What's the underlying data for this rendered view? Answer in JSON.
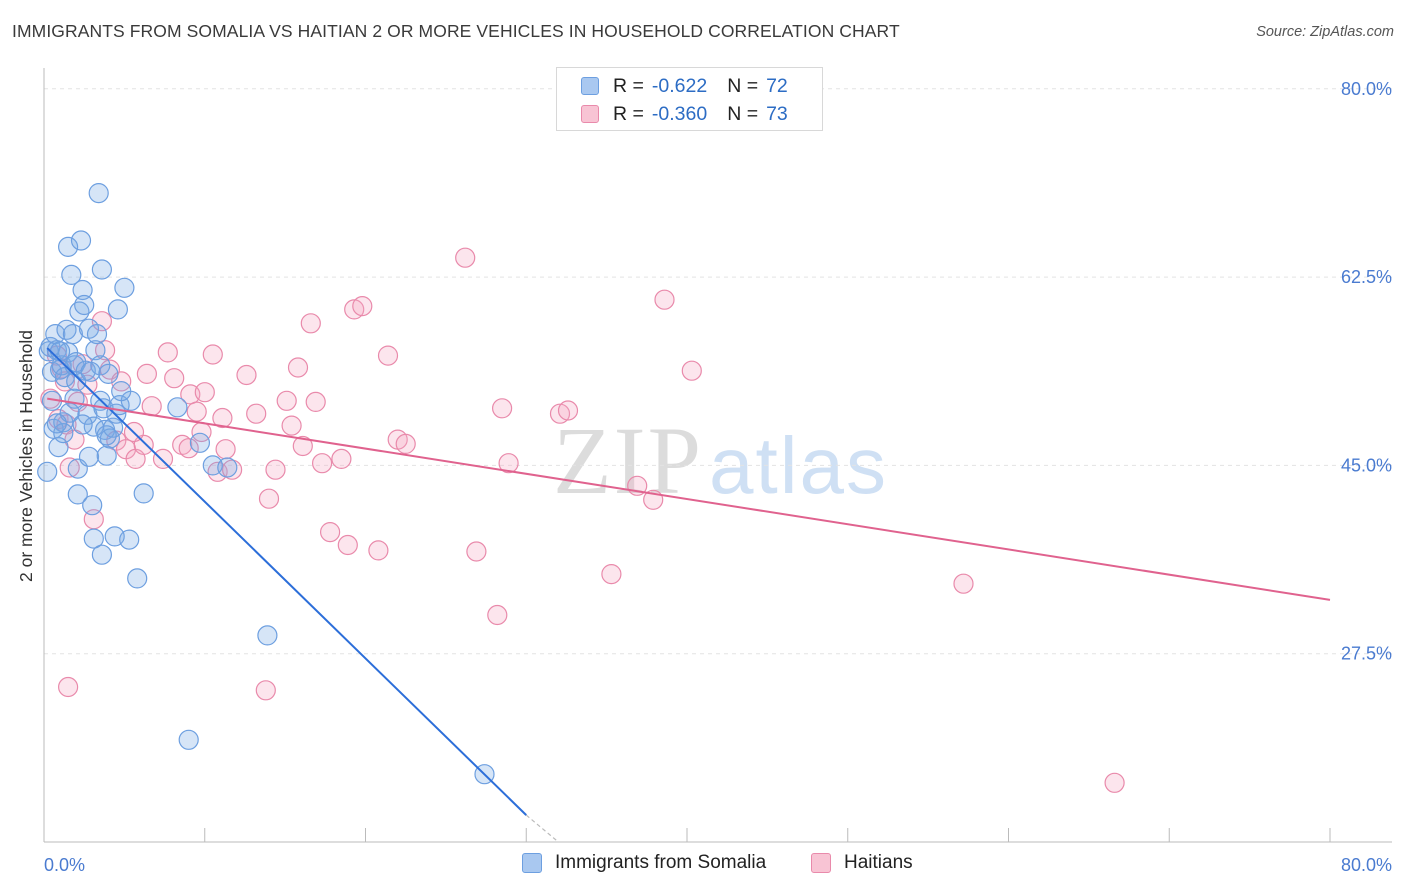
{
  "title": "IMMIGRANTS FROM SOMALIA VS HAITIAN 2 OR MORE VEHICLES IN HOUSEHOLD CORRELATION CHART",
  "source": "Source: ZipAtlas.com",
  "watermark": {
    "left": "ZIP",
    "right": "atlas"
  },
  "legend": {
    "rows": [
      {
        "r_label": "R =",
        "r_value": "-0.622",
        "n_label": "N =",
        "n_value": "72",
        "color": "#a9c8f0",
        "border": "#6d9fe0"
      },
      {
        "r_label": "R =",
        "r_value": "-0.360",
        "n_label": "N =",
        "n_value": "73",
        "color": "#f8c4d4",
        "border": "#e98aab"
      }
    ]
  },
  "bottom_legend": [
    "Immigrants from Somalia",
    "Haitians"
  ],
  "chart_data": {
    "type": "scatter",
    "title": "IMMIGRANTS FROM SOMALIA VS HAITIAN 2 OR MORE VEHICLES IN HOUSEHOLD CORRELATION CHART",
    "xlabel": "",
    "ylabel": "2 or more Vehicles in Household",
    "xlim": [
      0,
      80
    ],
    "ylim": [
      10,
      81
    ],
    "x_tick_labels": [
      "0.0%",
      "80.0%"
    ],
    "y_ticks": [
      27.5,
      45.0,
      62.5,
      80.0
    ],
    "y_tick_labels": [
      "27.5%",
      "45.0%",
      "62.5%",
      "80.0%"
    ],
    "grid": true,
    "legend_position": "top-center",
    "series": [
      {
        "name": "Immigrants from Somalia",
        "color": "#6d9fe0",
        "fill": "rgba(120,168,230,0.30)",
        "trend": {
          "x": [
            0.2,
            30.0
          ],
          "y": [
            55.9,
            12.5
          ],
          "color": "#2c6ed9",
          "dashed_to": [
            32.0,
            10.0
          ]
        },
        "points": [
          [
            0.3,
            55.6
          ],
          [
            0.4,
            56.0
          ],
          [
            0.5,
            53.7
          ],
          [
            0.5,
            51.0
          ],
          [
            0.6,
            48.4
          ],
          [
            0.7,
            57.2
          ],
          [
            0.8,
            55.7
          ],
          [
            0.9,
            46.7
          ],
          [
            1.0,
            53.9
          ],
          [
            1.1,
            54.3
          ],
          [
            1.2,
            49.0
          ],
          [
            1.2,
            48.0
          ],
          [
            1.3,
            53.2
          ],
          [
            1.4,
            57.6
          ],
          [
            1.5,
            65.3
          ],
          [
            1.5,
            55.5
          ],
          [
            1.6,
            49.9
          ],
          [
            1.7,
            62.7
          ],
          [
            1.8,
            57.2
          ],
          [
            1.9,
            54.3
          ],
          [
            2.0,
            52.8
          ],
          [
            2.0,
            54.6
          ],
          [
            2.1,
            42.3
          ],
          [
            2.1,
            44.7
          ],
          [
            2.2,
            59.3
          ],
          [
            2.3,
            65.9
          ],
          [
            2.4,
            61.3
          ],
          [
            2.5,
            59.9
          ],
          [
            2.6,
            53.8
          ],
          [
            2.7,
            49.7
          ],
          [
            2.8,
            57.7
          ],
          [
            2.8,
            45.8
          ],
          [
            3.0,
            41.3
          ],
          [
            3.1,
            38.2
          ],
          [
            3.1,
            48.6
          ],
          [
            3.2,
            55.7
          ],
          [
            3.3,
            57.2
          ],
          [
            3.4,
            70.3
          ],
          [
            3.5,
            54.3
          ],
          [
            3.5,
            51.0
          ],
          [
            3.6,
            63.2
          ],
          [
            3.6,
            36.7
          ],
          [
            3.7,
            50.3
          ],
          [
            3.8,
            48.3
          ],
          [
            3.9,
            45.9
          ],
          [
            4.0,
            53.5
          ],
          [
            4.1,
            47.5
          ],
          [
            4.3,
            48.5
          ],
          [
            4.4,
            38.4
          ],
          [
            4.5,
            49.8
          ],
          [
            4.6,
            59.5
          ],
          [
            4.7,
            50.6
          ],
          [
            5.0,
            61.5
          ],
          [
            5.3,
            38.1
          ],
          [
            5.4,
            51.0
          ],
          [
            5.8,
            34.5
          ],
          [
            6.2,
            42.4
          ],
          [
            8.3,
            50.4
          ],
          [
            9.0,
            19.5
          ],
          [
            9.7,
            47.1
          ],
          [
            10.5,
            45.0
          ],
          [
            11.4,
            44.8
          ],
          [
            13.9,
            29.2
          ],
          [
            27.4,
            16.3
          ],
          [
            0.2,
            44.4
          ],
          [
            1.0,
            55.6
          ],
          [
            2.4,
            48.8
          ],
          [
            3.9,
            47.8
          ],
          [
            1.9,
            51.2
          ],
          [
            2.9,
            53.7
          ],
          [
            0.8,
            48.9
          ],
          [
            4.8,
            51.9
          ]
        ]
      },
      {
        "name": "Haitians",
        "color": "#e98aab",
        "fill": "rgba(244,170,195,0.30)",
        "trend": {
          "x": [
            0.2,
            80.0
          ],
          "y": [
            51.2,
            32.5
          ],
          "color": "#e0628e"
        },
        "points": [
          [
            0.4,
            51.2
          ],
          [
            0.8,
            55.2
          ],
          [
            0.9,
            49.3
          ],
          [
            1.1,
            54.0
          ],
          [
            1.3,
            52.8
          ],
          [
            1.4,
            48.8
          ],
          [
            1.5,
            24.4
          ],
          [
            1.6,
            44.8
          ],
          [
            1.9,
            47.4
          ],
          [
            2.1,
            50.9
          ],
          [
            2.4,
            54.4
          ],
          [
            2.7,
            52.5
          ],
          [
            3.1,
            40.0
          ],
          [
            3.6,
            58.4
          ],
          [
            3.8,
            55.7
          ],
          [
            4.1,
            53.9
          ],
          [
            4.5,
            47.3
          ],
          [
            4.8,
            52.8
          ],
          [
            5.1,
            46.5
          ],
          [
            5.7,
            45.6
          ],
          [
            6.2,
            46.9
          ],
          [
            6.4,
            53.5
          ],
          [
            6.7,
            50.5
          ],
          [
            7.4,
            45.6
          ],
          [
            7.7,
            55.5
          ],
          [
            8.1,
            53.1
          ],
          [
            8.6,
            46.9
          ],
          [
            9.0,
            46.6
          ],
          [
            9.1,
            51.6
          ],
          [
            9.5,
            50.0
          ],
          [
            9.8,
            48.1
          ],
          [
            10.0,
            51.8
          ],
          [
            10.5,
            55.3
          ],
          [
            10.8,
            44.4
          ],
          [
            11.1,
            49.4
          ],
          [
            11.3,
            46.5
          ],
          [
            11.7,
            44.6
          ],
          [
            12.6,
            53.4
          ],
          [
            13.2,
            49.8
          ],
          [
            13.8,
            24.1
          ],
          [
            14.0,
            41.9
          ],
          [
            14.4,
            44.6
          ],
          [
            15.1,
            51.0
          ],
          [
            15.4,
            48.7
          ],
          [
            15.8,
            54.1
          ],
          [
            16.1,
            46.8
          ],
          [
            16.6,
            58.2
          ],
          [
            16.9,
            50.9
          ],
          [
            17.3,
            45.2
          ],
          [
            17.8,
            38.8
          ],
          [
            18.5,
            45.6
          ],
          [
            18.9,
            37.6
          ],
          [
            19.3,
            59.5
          ],
          [
            19.8,
            59.8
          ],
          [
            20.8,
            37.1
          ],
          [
            21.4,
            55.2
          ],
          [
            22.0,
            47.4
          ],
          [
            22.5,
            47.0
          ],
          [
            26.2,
            64.3
          ],
          [
            26.9,
            37.0
          ],
          [
            28.2,
            31.1
          ],
          [
            28.5,
            50.3
          ],
          [
            28.9,
            45.2
          ],
          [
            32.1,
            49.8
          ],
          [
            32.6,
            50.1
          ],
          [
            35.3,
            34.9
          ],
          [
            36.9,
            43.1
          ],
          [
            37.9,
            41.8
          ],
          [
            38.6,
            60.4
          ],
          [
            40.3,
            53.8
          ],
          [
            57.2,
            34.0
          ],
          [
            66.6,
            15.5
          ],
          [
            5.6,
            48.1
          ]
        ]
      }
    ]
  }
}
